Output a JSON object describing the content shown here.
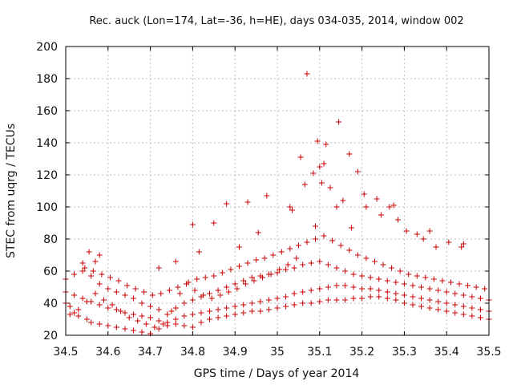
{
  "chart_data": {
    "type": "scatter",
    "title": "Rec. auck (Lon=174, Lat=-36, h=HE), days 034-035, 2014, window 002",
    "xlabel": "GPS time / Days of year 2014",
    "ylabel": "STEC from uqrg / TECUs",
    "xlim": [
      34.5,
      35.5
    ],
    "ylim": [
      20,
      200
    ],
    "xticks": [
      34.5,
      34.6,
      34.7,
      34.8,
      34.9,
      35,
      35.1,
      35.2,
      35.3,
      35.4,
      35.5
    ],
    "xtick_labels": [
      "34.5",
      "34.6",
      "34.7",
      "34.8",
      "34.9",
      "35",
      "35.1",
      "35.2",
      "35.3",
      "35.4",
      "35.5"
    ],
    "yticks": [
      20,
      40,
      60,
      80,
      100,
      120,
      140,
      160,
      180,
      200
    ],
    "ytick_labels": [
      "20",
      "40",
      "60",
      "80",
      "100",
      "120",
      "140",
      "160",
      "180",
      "200"
    ],
    "grid": true,
    "marker": "+",
    "color": "#cc0000",
    "series": [
      {
        "name": "STEC",
        "x": [
          34.5,
          34.51,
          34.52,
          34.53,
          34.55,
          34.56,
          34.58,
          34.6,
          34.62,
          34.64,
          34.66,
          34.68,
          34.7,
          34.72,
          34.74,
          34.76,
          34.78,
          34.8,
          34.82,
          34.84,
          34.86,
          34.88,
          34.9,
          34.92,
          34.94,
          34.96,
          34.98,
          35.0,
          35.02,
          35.04,
          35.06,
          35.08,
          35.1,
          35.12,
          35.14,
          35.16,
          35.18,
          35.2,
          35.22,
          35.24,
          35.26,
          35.28,
          35.3,
          35.32,
          35.34,
          35.36,
          35.38,
          35.4,
          35.42,
          35.44,
          35.46,
          35.48,
          35.5,
          34.5,
          34.52,
          34.54,
          34.56,
          34.58,
          34.6,
          34.62,
          34.64,
          34.66,
          34.68,
          34.7,
          34.72,
          34.74,
          34.76,
          34.78,
          34.8,
          34.82,
          34.84,
          34.86,
          34.88,
          34.9,
          34.92,
          34.94,
          34.96,
          34.98,
          35.0,
          35.02,
          35.04,
          35.06,
          35.08,
          35.1,
          35.12,
          35.14,
          35.16,
          35.18,
          35.2,
          35.22,
          35.24,
          35.26,
          35.28,
          35.3,
          35.32,
          35.34,
          35.36,
          35.38,
          35.4,
          35.42,
          35.44,
          35.46,
          35.48,
          35.5,
          34.5,
          34.52,
          34.54,
          34.56,
          34.58,
          34.6,
          34.62,
          34.64,
          34.66,
          34.68,
          34.7,
          34.72,
          34.74,
          34.76,
          34.78,
          34.8,
          34.82,
          34.84,
          34.86,
          34.88,
          34.9,
          34.92,
          34.94,
          34.96,
          34.98,
          35.0,
          35.02,
          35.04,
          35.06,
          35.08,
          35.1,
          35.12,
          35.14,
          35.16,
          35.18,
          35.2,
          35.22,
          35.24,
          35.26,
          35.28,
          35.3,
          35.32,
          35.34,
          35.36,
          35.38,
          35.4,
          35.42,
          35.44,
          35.46,
          35.48,
          35.5,
          34.51,
          34.53,
          34.55,
          34.57,
          34.59,
          34.61,
          34.63,
          34.65,
          34.67,
          34.69,
          34.71,
          34.73,
          34.75,
          34.77,
          34.79,
          34.81,
          34.83,
          34.85,
          34.87,
          34.89,
          34.91,
          34.93,
          34.95,
          34.97,
          34.99,
          35.01,
          35.03,
          35.05,
          35.07,
          35.09,
          35.11,
          35.13,
          35.15,
          35.17,
          35.19,
          35.21,
          35.23,
          35.25,
          35.27,
          35.29,
          35.31,
          35.33,
          35.35,
          35.37,
          35.39,
          35.41,
          35.43,
          35.45,
          35.47,
          35.49,
          34.54,
          34.555,
          34.57,
          34.58,
          34.72,
          34.76,
          34.8,
          34.815,
          34.85,
          34.88,
          34.91,
          34.93,
          34.955,
          34.975,
          35.03,
          35.055,
          35.07,
          35.085,
          35.095,
          35.1,
          35.105,
          35.11,
          35.125,
          35.14,
          35.155,
          35.17,
          35.19,
          35.21,
          35.235,
          35.265,
          35.285,
          35.33,
          35.36,
          35.44,
          35.035,
          35.065,
          35.09,
          35.115,
          35.145,
          35.175,
          35.205,
          35.245,
          35.275,
          35.305,
          35.345,
          35.375,
          35.405,
          35.435,
          34.545,
          34.565,
          34.585,
          34.605,
          34.625,
          34.645,
          34.665,
          34.685,
          34.705,
          34.725,
          34.745,
          34.765,
          34.785,
          34.805,
          34.825,
          34.845,
          34.865,
          34.885,
          34.905,
          34.925,
          34.945,
          34.965,
          34.985,
          35.005,
          35.025,
          35.045
        ],
        "y": [
          40,
          38,
          34,
          32,
          30,
          28,
          27,
          26,
          25,
          24,
          23,
          22,
          21,
          24,
          26,
          27,
          26,
          25,
          28,
          30,
          31,
          32,
          33,
          34,
          35,
          35,
          36,
          37,
          38,
          39,
          40,
          40,
          41,
          42,
          42,
          42,
          43,
          43,
          44,
          44,
          43,
          42,
          40,
          39,
          38,
          37,
          36,
          35,
          34,
          33,
          32,
          31,
          30,
          47,
          45,
          43,
          41,
          39,
          37,
          36,
          34,
          33,
          32,
          31,
          29,
          28,
          30,
          32,
          33,
          34,
          35,
          36,
          37,
          38,
          39,
          40,
          41,
          42,
          43,
          44,
          46,
          47,
          48,
          49,
          50,
          51,
          51,
          50,
          49,
          49,
          48,
          47,
          46,
          45,
          44,
          43,
          42,
          41,
          40,
          39,
          38,
          37,
          36,
          35,
          55,
          58,
          60,
          57,
          52,
          49,
          47,
          45,
          43,
          40,
          38,
          36,
          33,
          37,
          40,
          42,
          44,
          46,
          48,
          50,
          52,
          54,
          56,
          57,
          58,
          59,
          61,
          62,
          64,
          65,
          66,
          64,
          62,
          60,
          58,
          57,
          56,
          55,
          54,
          53,
          52,
          51,
          50,
          49,
          48,
          47,
          46,
          45,
          44,
          43,
          42,
          33,
          36,
          41,
          46,
          42,
          39,
          35,
          31,
          29,
          27,
          25,
          27,
          35,
          46,
          53,
          55,
          56,
          57,
          59,
          61,
          63,
          65,
          67,
          68,
          70,
          72,
          74,
          76,
          78,
          80,
          82,
          79,
          76,
          73,
          70,
          68,
          66,
          64,
          62,
          60,
          58,
          57,
          56,
          55,
          54,
          53,
          52,
          51,
          50,
          49,
          65,
          72,
          66,
          70,
          62,
          66,
          89,
          72,
          90,
          102,
          75,
          103,
          84,
          107,
          100,
          131,
          183,
          121,
          141,
          125,
          115,
          127,
          112,
          100,
          104,
          133,
          122,
          100,
          105,
          100,
          92,
          83,
          85,
          77,
          98,
          114,
          88,
          139,
          153,
          87,
          108,
          95,
          101,
          85,
          80,
          75,
          78,
          75,
          62,
          60,
          58,
          56,
          54,
          51,
          49,
          47,
          45,
          46,
          48,
          50,
          52,
          48,
          45,
          43,
          45,
          47,
          49,
          52,
          54,
          56,
          58,
          61,
          64,
          68
        ]
      }
    ]
  }
}
